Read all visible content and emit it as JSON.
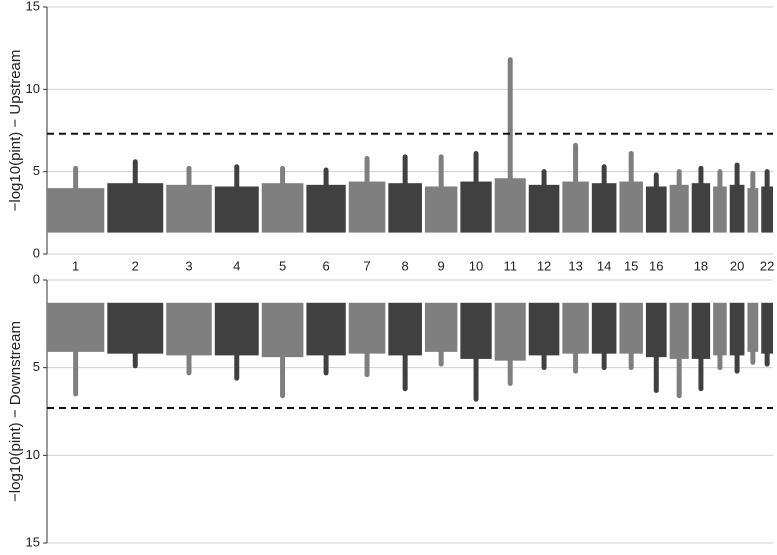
{
  "chart_data": [
    {
      "type": "manhattan",
      "ylabel": "−log10(pint) − Upstream",
      "categories": [
        "1",
        "2",
        "3",
        "4",
        "5",
        "6",
        "7",
        "8",
        "9",
        "10",
        "11",
        "12",
        "13",
        "14",
        "15",
        "16",
        null,
        "18",
        null,
        "20",
        null,
        "22"
      ],
      "floor": 1.3,
      "bulk": [
        4.0,
        4.3,
        4.2,
        4.1,
        4.3,
        4.2,
        4.4,
        4.3,
        4.1,
        4.4,
        4.6,
        4.2,
        4.4,
        4.3,
        4.4,
        4.1,
        4.2,
        4.3,
        4.1,
        4.2,
        4.0,
        4.1
      ],
      "values": [
        5.2,
        5.6,
        5.2,
        5.3,
        5.2,
        5.1,
        5.8,
        5.9,
        5.9,
        6.1,
        11.8,
        5.0,
        6.6,
        5.3,
        6.1,
        4.8,
        5.0,
        5.2,
        5.0,
        5.4,
        4.9,
        5.0
      ],
      "colors": [
        "#7f7f7f",
        "#404040"
      ],
      "threshold": 7.3,
      "ylim": [
        0,
        15
      ],
      "yticks": [
        0,
        5,
        10,
        15
      ],
      "grid": true,
      "inverted": false
    },
    {
      "type": "manhattan",
      "ylabel": "−log10(pint) − Downstream",
      "floor": 1.3,
      "bulk": [
        4.1,
        4.2,
        4.3,
        4.3,
        4.4,
        4.3,
        4.2,
        4.3,
        4.1,
        4.5,
        4.6,
        4.3,
        4.2,
        4.2,
        4.2,
        4.4,
        4.5,
        4.5,
        4.3,
        4.3,
        4.1,
        4.2
      ],
      "values": [
        6.5,
        4.9,
        5.3,
        5.6,
        6.6,
        5.3,
        5.4,
        6.2,
        4.8,
        6.8,
        5.9,
        5.0,
        5.2,
        5.0,
        5.0,
        6.3,
        6.6,
        6.2,
        5.0,
        5.2,
        4.7,
        4.8
      ],
      "colors": [
        "#7f7f7f",
        "#404040"
      ],
      "threshold": 7.3,
      "ylim": [
        0,
        15
      ],
      "yticks": [
        0,
        5,
        10,
        15
      ],
      "grid": true,
      "inverted": true
    }
  ]
}
